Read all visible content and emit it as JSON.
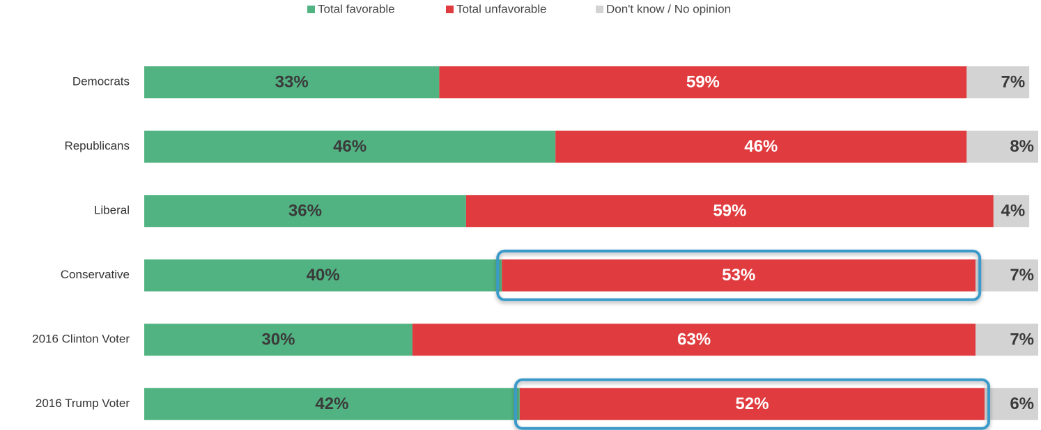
{
  "chart_data": {
    "type": "stacked-bar-horizontal",
    "categories": [
      "Democrats",
      "Republicans",
      "Liberal",
      "Conservative",
      "2016 Clinton Voter",
      "2016 Trump Voter"
    ],
    "series": [
      {
        "name": "Total favorable",
        "color": "#52b382",
        "label_color": "#3a3a3a",
        "values": [
          33,
          46,
          36,
          40,
          30,
          42
        ],
        "value_labels": [
          "33%",
          "46%",
          "36%",
          "40%",
          "30%",
          "42%"
        ]
      },
      {
        "name": "Total unfavorable",
        "color": "#e03c3f",
        "label_color": "#ffffff",
        "values": [
          59,
          46,
          59,
          53,
          63,
          52
        ],
        "value_labels": [
          "59%",
          "46%",
          "59%",
          "53%",
          "63%",
          "52%"
        ]
      },
      {
        "name": "Don't know / No opinion",
        "color": "#d3d3d3",
        "label_color": "#3a3a3a",
        "values": [
          7,
          8,
          4,
          7,
          7,
          6
        ],
        "value_labels": [
          "7%",
          "8%",
          "4%",
          "7%",
          "7%",
          "6%"
        ]
      }
    ],
    "xlim": [
      0,
      100
    ],
    "legend": "top",
    "highlight": [
      {
        "series": "Total unfavorable",
        "category": "Conservative",
        "color": "#3a9ac9"
      },
      {
        "series": "Total unfavorable",
        "category": "2016 Trump Voter",
        "color": "#3a9ac9"
      }
    ]
  }
}
